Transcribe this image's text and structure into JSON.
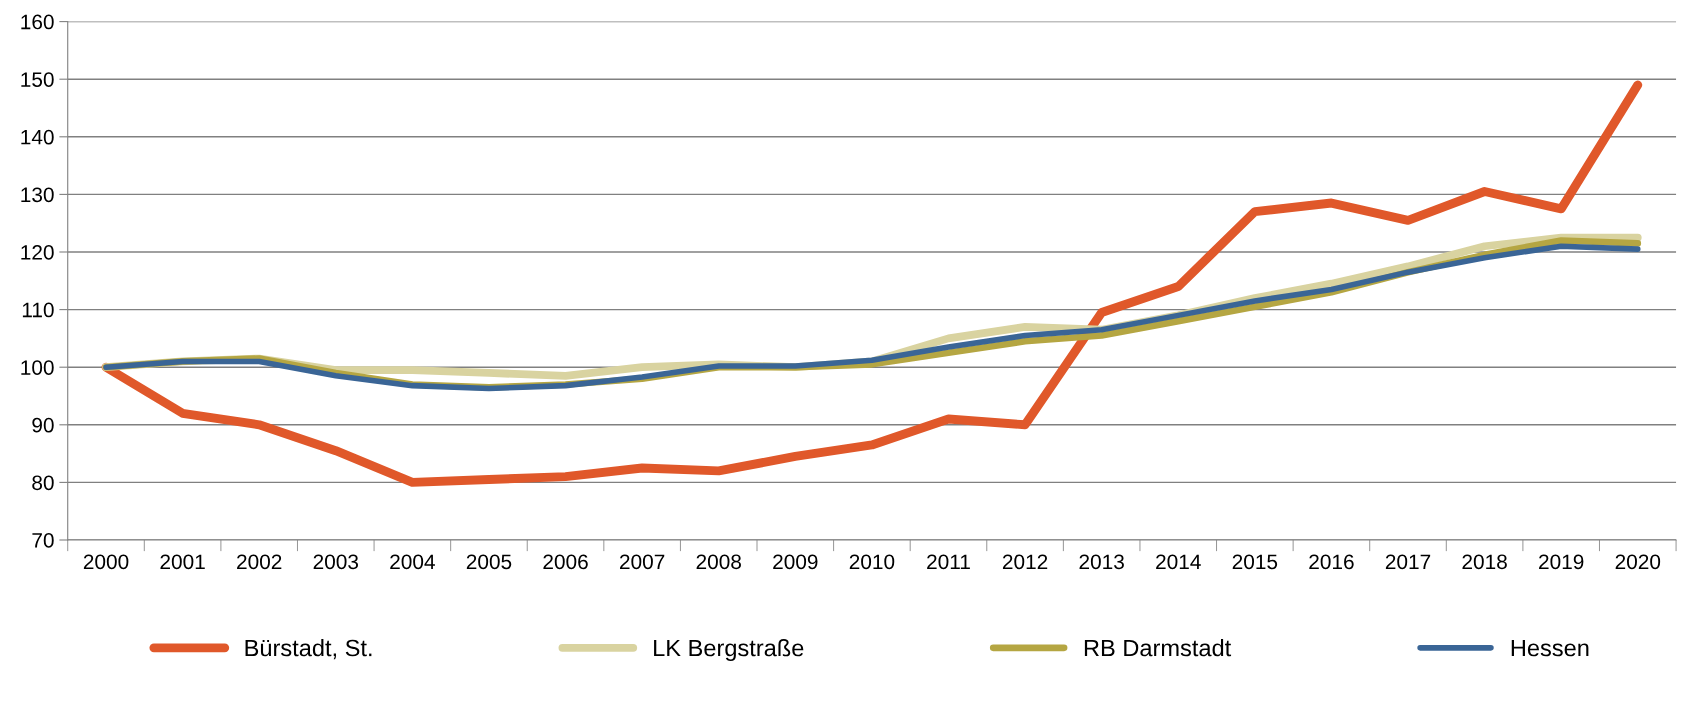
{
  "chart_data": {
    "type": "line",
    "categories": [
      "2000",
      "2001",
      "2002",
      "2003",
      "2004",
      "2005",
      "2006",
      "2007",
      "2008",
      "2009",
      "2010",
      "2011",
      "2012",
      "2013",
      "2014",
      "2015",
      "2016",
      "2017",
      "2018",
      "2019",
      "2020"
    ],
    "series": [
      {
        "name": "Bürstadt, St.",
        "color": "#e0582a",
        "values": [
          100,
          92,
          90,
          85.5,
          80,
          80.5,
          81,
          82.5,
          82,
          84.5,
          86.5,
          91,
          90,
          109.5,
          114,
          127,
          128.5,
          125.5,
          130.5,
          127.5,
          149
        ]
      },
      {
        "name": "LK Bergstraße",
        "color": "#d9d3a0",
        "values": [
          100,
          101,
          101.5,
          99.5,
          99.5,
          99,
          98.5,
          100,
          100.5,
          100,
          101,
          105,
          107,
          106.5,
          109,
          112,
          114.5,
          117.5,
          121,
          122.5,
          122.5
        ]
      },
      {
        "name": "RB Darmstadt",
        "color": "#b5a642",
        "values": [
          100,
          101,
          101.5,
          99,
          97,
          96.5,
          97,
          98,
          100,
          100,
          100.5,
          102.5,
          104.5,
          105.5,
          108,
          110.5,
          113,
          116.5,
          119.5,
          122,
          121.5
        ]
      },
      {
        "name": "Hessen",
        "color": "#3a6596",
        "values": [
          100,
          101,
          101,
          98.5,
          96.8,
          96.3,
          96.8,
          98.3,
          100.2,
          100.2,
          101.2,
          103.5,
          105.5,
          106.5,
          109,
          111.5,
          113.5,
          116.5,
          119,
          121,
          120.5
        ]
      }
    ],
    "ylim": [
      70,
      160
    ],
    "yticks": [
      70,
      80,
      90,
      100,
      110,
      120,
      130,
      140,
      150,
      160
    ],
    "grid": "y",
    "legend": "bottom",
    "marker": "none",
    "line_style": "solid"
  }
}
